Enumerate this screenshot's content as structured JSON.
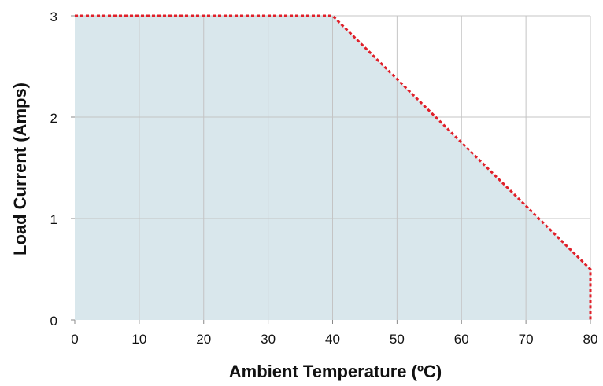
{
  "chart_data": {
    "type": "area",
    "title": "",
    "xlabel": "Ambient Temperature (ºC)",
    "ylabel": "Load Current (Amps)",
    "xlim": [
      0,
      80
    ],
    "ylim": [
      0,
      3
    ],
    "xticks": [
      0,
      10,
      20,
      30,
      40,
      50,
      60,
      70,
      80
    ],
    "yticks": [
      0,
      1,
      2,
      3
    ],
    "x_tick_labels": [
      "0",
      "10",
      "20",
      "30",
      "40",
      "50",
      "60",
      "70",
      "80"
    ],
    "y_tick_labels": [
      "0",
      "1",
      "2",
      "3"
    ],
    "grid": true,
    "series": [
      {
        "x": [
          0,
          40,
          80,
          80
        ],
        "y": [
          3,
          3,
          0.5,
          0
        ],
        "line_style": "dotted",
        "line_color": "#e0202a",
        "fill_color": "#d9e7ec"
      }
    ]
  }
}
